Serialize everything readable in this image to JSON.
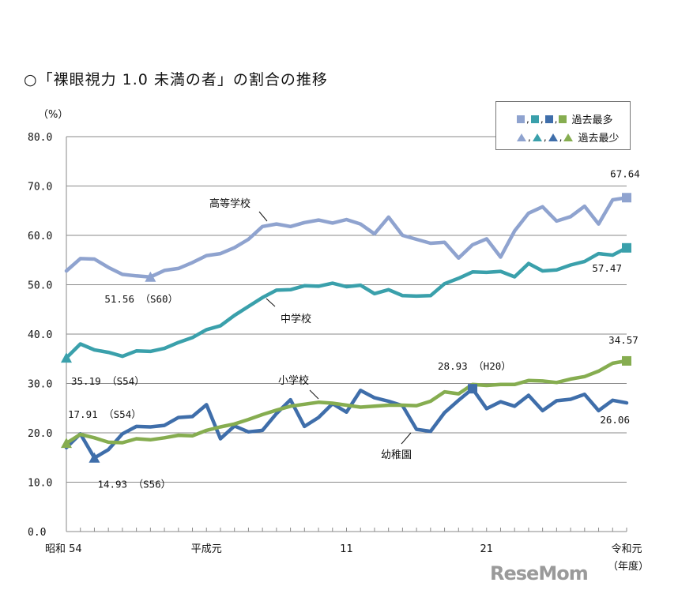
{
  "chart_data": {
    "type": "line",
    "title": "○「裸眼視力 1.0 未満の者」の割合の推移",
    "ylabel": "（%）",
    "xlabel": "（年度）",
    "ylim": [
      0,
      80
    ],
    "yticks": [
      "0.0",
      "10.0",
      "20.0",
      "30.0",
      "40.0",
      "50.0",
      "60.0",
      "70.0",
      "80.0"
    ],
    "grid": true,
    "x": [
      1979,
      1980,
      1981,
      1982,
      1983,
      1984,
      1985,
      1986,
      1987,
      1988,
      1989,
      1990,
      1991,
      1992,
      1993,
      1994,
      1995,
      1996,
      1997,
      1998,
      1999,
      2000,
      2001,
      2002,
      2003,
      2004,
      2005,
      2006,
      2007,
      2008,
      2009,
      2010,
      2011,
      2012,
      2013,
      2014,
      2015,
      2016,
      2017,
      2018,
      2019
    ],
    "xtick_labels": [
      {
        "year": 1979,
        "label": "昭和 54"
      },
      {
        "year": 1989,
        "label": "平成元"
      },
      {
        "year": 1999,
        "label": "11"
      },
      {
        "year": 2009,
        "label": "21"
      },
      {
        "year": 2019,
        "label": "令和元"
      }
    ],
    "series": [
      {
        "name": "高等学校",
        "color": "#8fa3cf",
        "values": [
          52.8,
          55.3,
          55.2,
          53.5,
          52.1,
          51.8,
          51.56,
          52.9,
          53.3,
          54.5,
          55.9,
          56.3,
          57.5,
          59.2,
          61.8,
          62.3,
          61.8,
          62.6,
          63.1,
          62.5,
          63.2,
          62.3,
          60.3,
          63.7,
          60.0,
          59.2,
          58.4,
          58.6,
          55.4,
          58.1,
          59.3,
          55.6,
          60.9,
          64.5,
          65.8,
          62.9,
          63.8,
          65.9,
          62.3,
          67.2,
          67.64
        ]
      },
      {
        "name": "中学校",
        "color": "#3aa0ab",
        "values": [
          35.19,
          38.0,
          36.8,
          36.3,
          35.5,
          36.6,
          36.5,
          37.1,
          38.3,
          39.3,
          40.9,
          41.7,
          43.8,
          45.6,
          47.4,
          48.9,
          49.0,
          49.8,
          49.7,
          50.3,
          49.6,
          49.9,
          48.2,
          49.0,
          47.8,
          47.7,
          47.8,
          50.2,
          51.3,
          52.6,
          52.5,
          52.7,
          51.6,
          54.3,
          52.8,
          53.0,
          54.0,
          54.7,
          56.3,
          56.0,
          57.47
        ]
      },
      {
        "name": "小学校",
        "color": "#3f6eaa",
        "values": [
          17.0,
          19.8,
          14.93,
          16.6,
          19.8,
          21.3,
          21.2,
          21.5,
          23.1,
          23.3,
          25.7,
          18.8,
          21.4,
          20.2,
          20.5,
          23.9,
          26.7,
          21.3,
          23.1,
          25.9,
          24.2,
          28.6,
          27.1,
          26.4,
          25.5,
          20.7,
          20.3,
          24.1,
          26.6,
          28.93,
          24.9,
          26.3,
          25.4,
          27.6,
          24.5,
          26.5,
          26.8,
          27.8,
          24.5,
          26.6,
          26.06
        ]
      },
      {
        "name": "幼稚園",
        "color": "#86ad50",
        "values": [
          17.91,
          19.7,
          19.0,
          18.1,
          18.0,
          18.8,
          18.6,
          19.0,
          19.5,
          19.4,
          20.5,
          21.2,
          21.8,
          22.7,
          23.7,
          24.6,
          25.4,
          25.8,
          26.2,
          26.0,
          25.6,
          25.2,
          25.4,
          25.6,
          25.6,
          25.5,
          26.4,
          28.3,
          27.9,
          29.8,
          29.6,
          29.8,
          29.8,
          30.6,
          30.5,
          30.2,
          30.9,
          31.4,
          32.5,
          34.1,
          34.57
        ]
      }
    ],
    "annotations": [
      {
        "series": "高等学校",
        "year": 1985,
        "marker": "triangle",
        "text": "51.56 （S60）"
      },
      {
        "series": "高等学校",
        "year": 2019,
        "marker": "square",
        "text": "67.64"
      },
      {
        "series": "中学校",
        "year": 1979,
        "marker": "triangle",
        "text": "35.19 （S54）"
      },
      {
        "series": "中学校",
        "year": 2019,
        "marker": "square",
        "text": "57.47"
      },
      {
        "series": "小学校",
        "year": 1981,
        "marker": "triangle",
        "text": "14.93 （S56）"
      },
      {
        "series": "小学校",
        "year": 2008,
        "marker": "square",
        "text": "28.93 （H20）"
      },
      {
        "series": "小学校",
        "year": 2019,
        "marker": "none",
        "text": "26.06"
      },
      {
        "series": "幼稚園",
        "year": 1979,
        "marker": "triangle",
        "text": "17.91 （S54）"
      },
      {
        "series": "幼稚園",
        "year": 2019,
        "marker": "square",
        "text": "34.57"
      }
    ],
    "legend": {
      "position": "top-right",
      "entries": [
        {
          "symbol": "square",
          "label": "過去最多"
        },
        {
          "symbol": "triangle",
          "label": "過去最少"
        }
      ]
    }
  },
  "watermark": "ReseMom"
}
